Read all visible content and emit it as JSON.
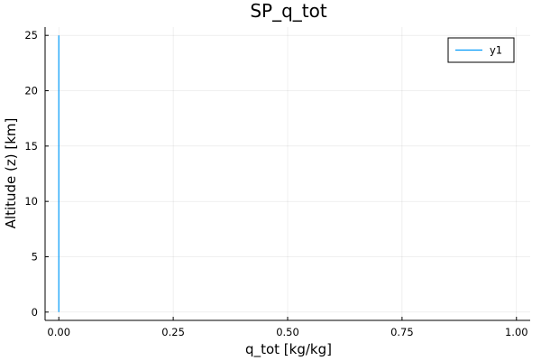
{
  "chart_data": {
    "type": "line",
    "title": "SP_q_tot",
    "xlabel": "q_tot [kg/kg]",
    "ylabel": "Altitude (z) [km]",
    "xlim": [
      -0.03,
      1.03
    ],
    "ylim": [
      -0.75,
      25.75
    ],
    "xticks": [
      0.0,
      0.25,
      0.5,
      0.75,
      1.0
    ],
    "xtick_labels": [
      "0.00",
      "0.25",
      "0.50",
      "0.75",
      "1.00"
    ],
    "yticks": [
      0,
      5,
      10,
      15,
      20,
      25
    ],
    "ytick_labels": [
      "0",
      "5",
      "10",
      "15",
      "20",
      "25"
    ],
    "grid": true,
    "legend": "top-right",
    "series": [
      {
        "name": "y1",
        "color": "#009AFA",
        "x": [
          0.0,
          0.0
        ],
        "y": [
          0,
          25
        ]
      }
    ]
  }
}
